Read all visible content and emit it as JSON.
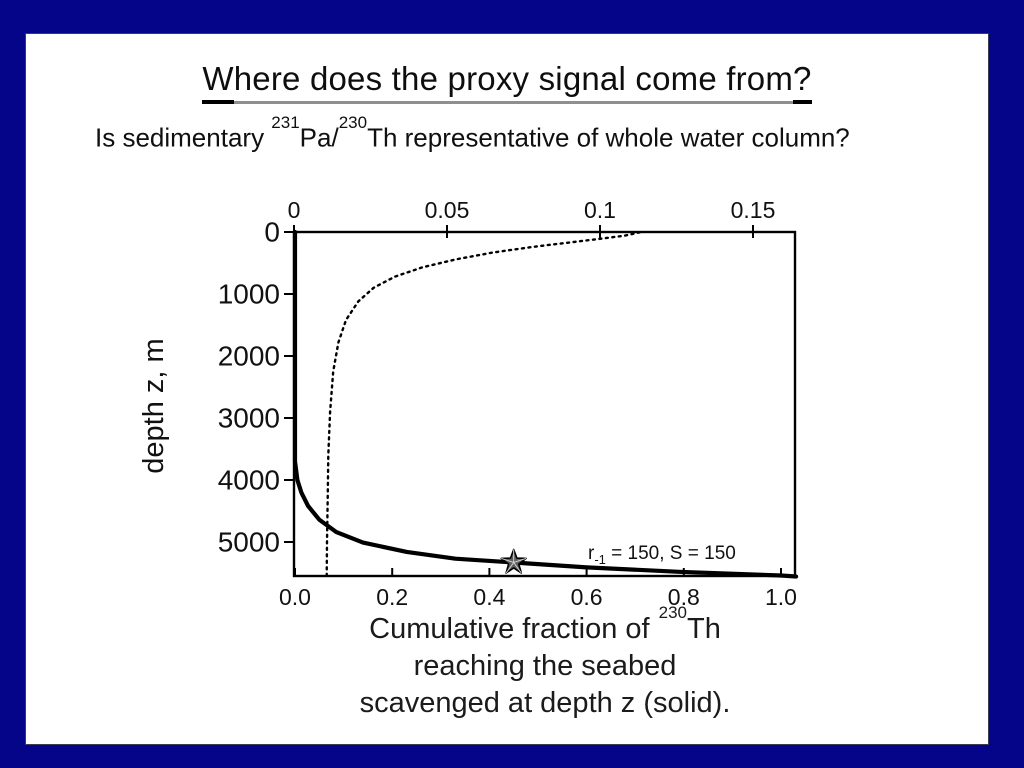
{
  "slide": {
    "title": {
      "first": "W",
      "middle": "here does the proxy signal come from",
      "last": "?"
    },
    "subtitle": {
      "pre": "Is sedimentary ",
      "sup1": "231",
      "mid": "Pa/",
      "sup2": "230",
      "post": "Th representative of whole water column?"
    }
  },
  "caption": {
    "line1_pre": "Cumulative fraction of",
    "line1_sup": "230",
    "line1_post": "Th",
    "line2": "reaching the seabed",
    "line3": "scavenged at depth z (solid)."
  },
  "chart_data": {
    "type": "line",
    "title": "",
    "ylabel": "depth z, m",
    "xlabel": "Cumulative fraction of 230Th reaching the seabed scavenged at depth z (solid).",
    "grid": false,
    "annotation": {
      "var": "r",
      "sub": "-1",
      "rest": " = 150, S = 150"
    },
    "axes": {
      "top": {
        "tick_labels": [
          "0",
          "0.05",
          "0.1",
          "0.15"
        ],
        "tick_values": [
          0,
          0.05,
          0.1,
          0.15
        ],
        "range": [
          0,
          0.164
        ]
      },
      "bottom": {
        "tick_labels": [
          "0.0",
          "0.2",
          "0.4",
          "0.6",
          "0.8",
          "1.0"
        ],
        "tick_values": [
          0,
          0.2,
          0.4,
          0.6,
          0.8,
          1.0
        ],
        "range": [
          0,
          1.031
        ]
      },
      "left": {
        "tick_labels": [
          "0",
          "1000",
          "2000",
          "3000",
          "4000",
          "5000"
        ],
        "tick_values": [
          0,
          1000,
          2000,
          3000,
          4000,
          5000
        ],
        "range": [
          0,
          5560
        ],
        "unit": "m",
        "direction": "down"
      }
    },
    "series": [
      {
        "name": "231Pa-profile-dashed",
        "style": "dashed",
        "x_axis": "top",
        "points": [
          [
            0.113,
            5
          ],
          [
            0.108,
            60
          ],
          [
            0.1,
            110
          ],
          [
            0.09,
            170
          ],
          [
            0.078,
            240
          ],
          [
            0.065,
            330
          ],
          [
            0.053,
            440
          ],
          [
            0.042,
            570
          ],
          [
            0.033,
            720
          ],
          [
            0.026,
            900
          ],
          [
            0.021,
            1120
          ],
          [
            0.017,
            1420
          ],
          [
            0.0145,
            1780
          ],
          [
            0.0128,
            2250
          ],
          [
            0.0118,
            2900
          ],
          [
            0.0112,
            3600
          ],
          [
            0.011,
            4300
          ],
          [
            0.0108,
            5000
          ],
          [
            0.0107,
            5560
          ]
        ]
      },
      {
        "name": "230Th-cumulative-fraction-solid",
        "style": "solid",
        "x_axis": "bottom",
        "points": [
          [
            0,
            0
          ],
          [
            0,
            1000
          ],
          [
            0,
            2000
          ],
          [
            0,
            3000
          ],
          [
            0,
            3700
          ],
          [
            0.005,
            4000
          ],
          [
            0.013,
            4200
          ],
          [
            0.027,
            4420
          ],
          [
            0.05,
            4640
          ],
          [
            0.085,
            4840
          ],
          [
            0.14,
            5010
          ],
          [
            0.23,
            5160
          ],
          [
            0.33,
            5270
          ],
          [
            0.45,
            5330
          ],
          [
            0.6,
            5410
          ],
          [
            0.79,
            5480
          ],
          [
            1.0,
            5540
          ],
          [
            1.031,
            5556
          ]
        ]
      }
    ],
    "marker": {
      "shape": "star",
      "x_axis": "bottom",
      "value": 0.45,
      "depth": 5330
    }
  }
}
